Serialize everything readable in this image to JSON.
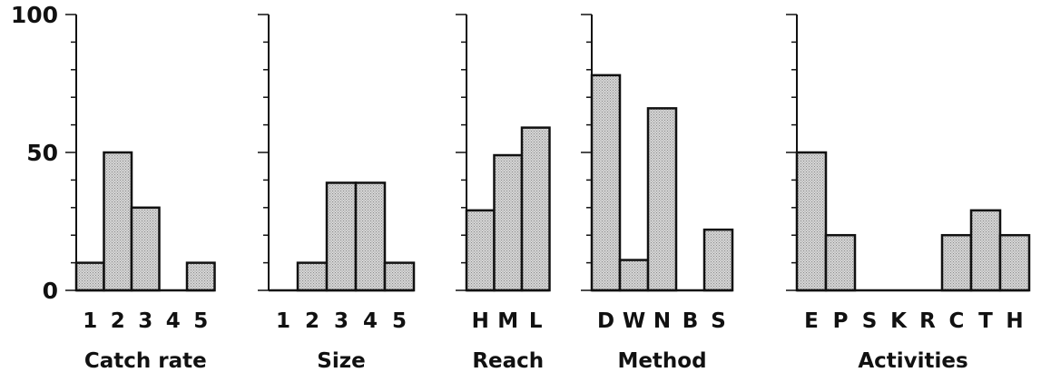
{
  "chart_data": [
    {
      "type": "bar",
      "xlabel": "Catch rate",
      "categories": [
        "1",
        "2",
        "3",
        "4",
        "5"
      ],
      "values": [
        10,
        50,
        30,
        0,
        10
      ],
      "ylim": [
        0,
        100
      ],
      "yticks": [
        "0",
        "50",
        "100"
      ]
    },
    {
      "type": "bar",
      "xlabel": "Size",
      "categories": [
        "1",
        "2",
        "3",
        "4",
        "5"
      ],
      "values": [
        0,
        10,
        39,
        39,
        10
      ],
      "ylim": [
        0,
        100
      ]
    },
    {
      "type": "bar",
      "xlabel": "Reach",
      "categories": [
        "H",
        "M",
        "L"
      ],
      "values": [
        29,
        49,
        59
      ],
      "ylim": [
        0,
        100
      ]
    },
    {
      "type": "bar",
      "xlabel": "Method",
      "categories": [
        "D",
        "W",
        "N",
        "B",
        "S"
      ],
      "values": [
        78,
        11,
        66,
        0,
        22
      ],
      "ylim": [
        0,
        100
      ]
    },
    {
      "type": "bar",
      "xlabel": "Activities",
      "categories": [
        "E",
        "P",
        "S",
        "K",
        "R",
        "C",
        "T",
        "H"
      ],
      "values": [
        50,
        20,
        0,
        0,
        0,
        20,
        29,
        20
      ],
      "ylim": [
        0,
        100
      ]
    }
  ],
  "colors": {
    "bar_fill": "#c9c9c9",
    "stroke": "#111111"
  }
}
